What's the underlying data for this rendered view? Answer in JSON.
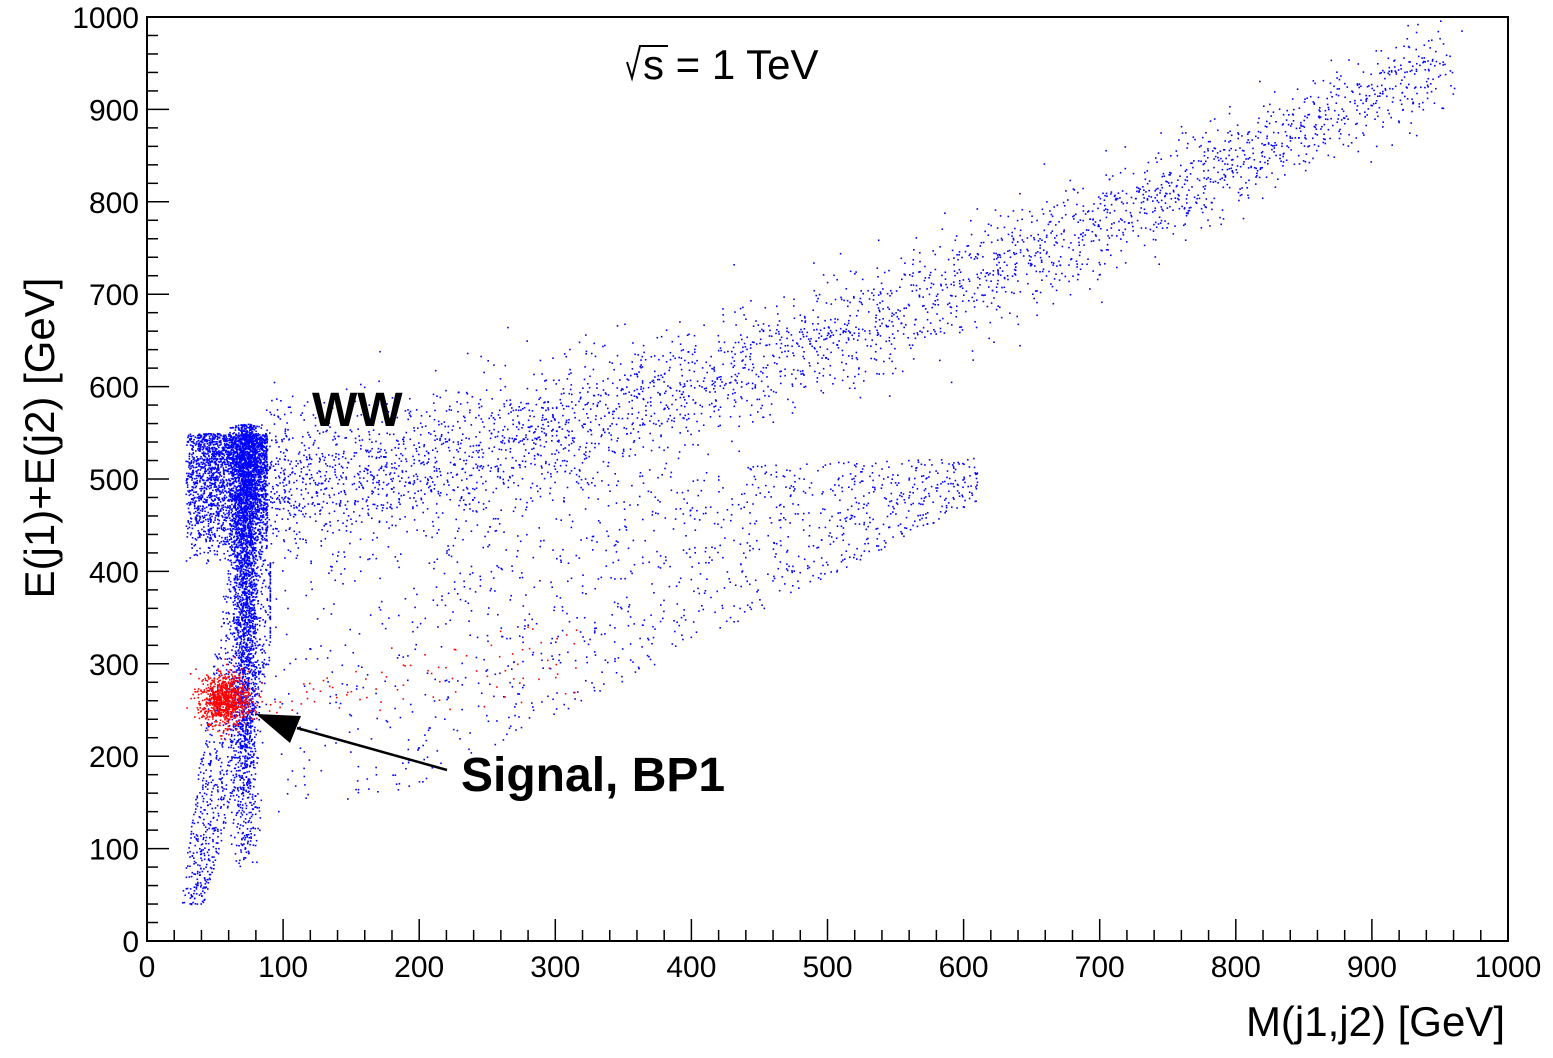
{
  "chart_data": {
    "type": "scatter",
    "xlabel": "M(j1,j2) [GeV]",
    "ylabel": "E(j1)+E(j2) [GeV]",
    "xlim": [
      0,
      1000
    ],
    "ylim": [
      0,
      1000
    ],
    "x_ticks": [
      "0",
      "100",
      "200",
      "300",
      "400",
      "500",
      "600",
      "700",
      "800",
      "900",
      "1000"
    ],
    "y_ticks": [
      "0",
      "100",
      "200",
      "300",
      "400",
      "500",
      "600",
      "700",
      "800",
      "900",
      "1000"
    ],
    "grid": false,
    "annotations": {
      "energy_root": "√",
      "energy_text": "s = 1 TeV",
      "ww_label": "WW",
      "signal_label": "Signal, BP1"
    },
    "arrow": {
      "from": [
        220,
        200
      ],
      "to": [
        75,
        245
      ]
    },
    "series": [
      {
        "name": "WW",
        "color": "#0000ff",
        "regions": [
          {
            "description": "vertical W-mass band",
            "x_range": [
              65,
              85
            ],
            "y_range": [
              60,
              560
            ]
          },
          {
            "description": "low-mass cluster",
            "x_range": [
              25,
              85
            ],
            "y_range": [
              400,
              550
            ]
          },
          {
            "description": "low-energy tail",
            "x_range": [
              25,
              80
            ],
            "y_range": [
              40,
              400
            ]
          },
          {
            "description": "diagonal band",
            "x_start": 85,
            "y_start": 500,
            "x_end": 955,
            "y_end": 955
          }
        ]
      },
      {
        "name": "Signal, BP1",
        "color": "#ff0000",
        "regions": [
          {
            "description": "dense signal cluster",
            "x_center": 57,
            "y_center": 262
          },
          {
            "description": "sparse signal tail",
            "x_range": [
              80,
              320
            ],
            "y_range": [
              250,
              350
            ]
          }
        ]
      }
    ]
  }
}
